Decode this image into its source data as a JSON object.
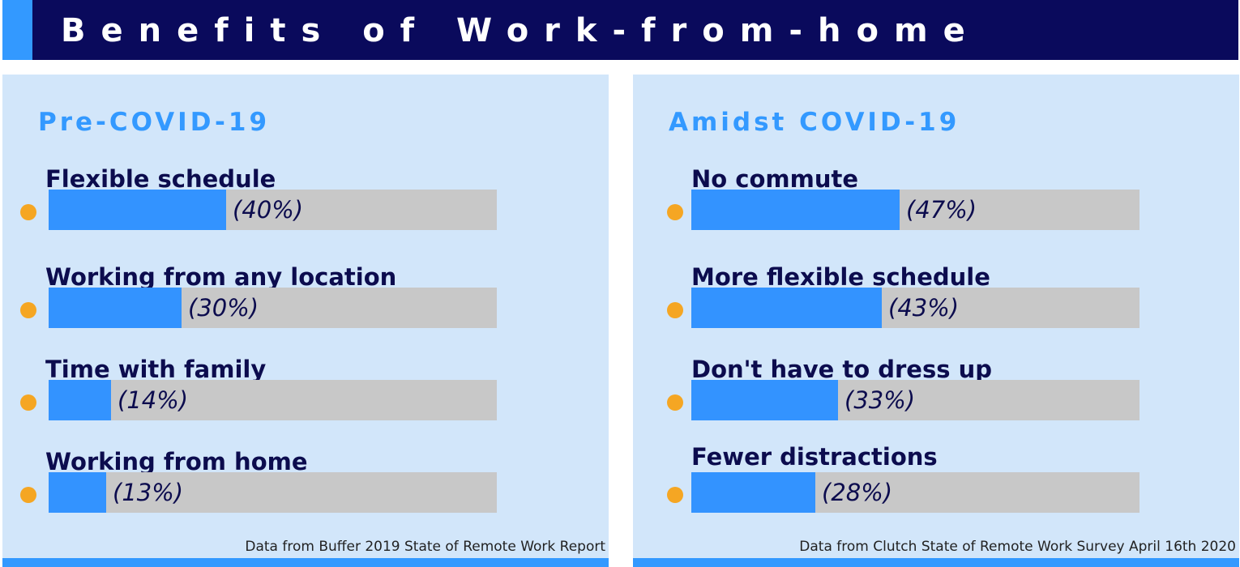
{
  "header": {
    "title": "Benefits of Work-from-home"
  },
  "chart_data": [
    {
      "type": "bar",
      "title": "Pre-COVID-19",
      "categories": [
        "Flexible schedule",
        "Working from any location",
        "Time with family",
        "Working from home"
      ],
      "values": [
        40,
        30,
        14,
        13
      ],
      "value_labels": [
        "(40%)",
        "(30%)",
        "(14%)",
        "(13%)"
      ],
      "xlim": [
        0,
        100
      ],
      "source": "Data from Buffer 2019 State of Remote Work Report"
    },
    {
      "type": "bar",
      "title": "Amidst COVID-19",
      "categories": [
        "No commute",
        "More flexible schedule",
        "Don't have to dress up",
        "Fewer distractions"
      ],
      "values": [
        47,
        43,
        33,
        28
      ],
      "value_labels": [
        "(47%)",
        "(43%)",
        "(33%)",
        "(28%)"
      ],
      "xlim": [
        0,
        100
      ],
      "source": "Data from Clutch State of Remote Work Survey April 16th 2020"
    }
  ],
  "colors": {
    "header_bg": "#0a0a5c",
    "accent": "#3399ff",
    "panel_bg": "#d2e6fa",
    "bar_fill": "#3393ff",
    "bar_track": "#c8c8c8",
    "bullet": "#f5a623",
    "text_dark": "#0c0c4e"
  }
}
